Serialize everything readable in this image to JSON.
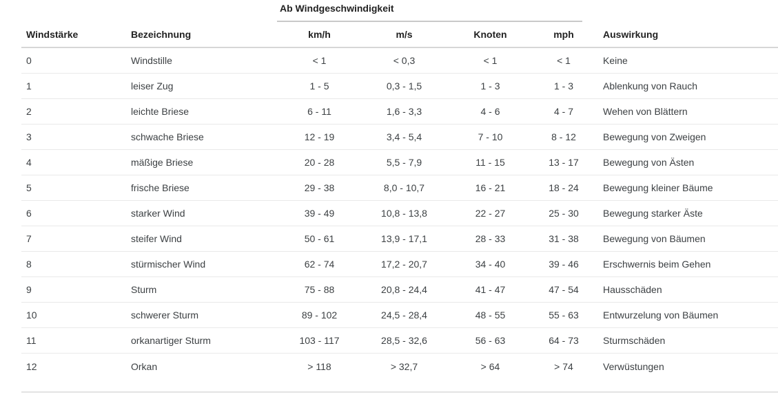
{
  "table": {
    "group_header": "Ab Windgeschwindigkeit",
    "columns": [
      "Windstärke",
      "Bezeichnung",
      "km/h",
      "m/s",
      "Knoten",
      "mph",
      "Auswirkung"
    ],
    "rows": [
      [
        "0",
        "Windstille",
        "< 1",
        "< 0,3",
        "< 1",
        "< 1",
        "Keine"
      ],
      [
        "1",
        "leiser Zug",
        "1 - 5",
        "0,3 - 1,5",
        "1 - 3",
        "1 - 3",
        "Ablenkung von Rauch"
      ],
      [
        "2",
        "leichte Briese",
        "6 - 11",
        "1,6 - 3,3",
        "4 - 6",
        "4 - 7",
        "Wehen von Blättern"
      ],
      [
        "3",
        "schwache Briese",
        "12 - 19",
        "3,4 - 5,4",
        "7 - 10",
        "8 - 12",
        "Bewegung von Zweigen"
      ],
      [
        "4",
        "mäßige Briese",
        "20 - 28",
        "5,5 - 7,9",
        "11 - 15",
        "13 - 17",
        "Bewegung von Ästen"
      ],
      [
        "5",
        "frische Briese",
        "29 - 38",
        "8,0 - 10,7",
        "16 - 21",
        "18 - 24",
        "Bewegung kleiner Bäume"
      ],
      [
        "6",
        "starker Wind",
        "39 - 49",
        "10,8 - 13,8",
        "22 - 27",
        "25 - 30",
        "Bewegung starker Äste"
      ],
      [
        "7",
        "steifer Wind",
        "50 - 61",
        "13,9 - 17,1",
        "28 - 33",
        "31 - 38",
        "Bewegung von Bäumen"
      ],
      [
        "8",
        "stürmischer Wind",
        "62 - 74",
        "17,2 - 20,7",
        "34 - 40",
        "39 - 46",
        "Erschwernis beim Gehen"
      ],
      [
        "9",
        "Sturm",
        "75 - 88",
        "20,8 - 24,4",
        "41 - 47",
        "47 - 54",
        "Hausschäden"
      ],
      [
        "10",
        "schwerer Sturm",
        "89 - 102",
        "24,5 - 28,4",
        "48 - 55",
        "55 - 63",
        "Entwurzelung von Bäumen"
      ],
      [
        "11",
        "orkanartiger Sturm",
        "103 - 117",
        "28,5 - 32,6",
        "56 - 63",
        "64 - 73",
        "Sturmschäden"
      ],
      [
        "12",
        "Orkan",
        "> 118",
        "> 32,7",
        "> 64",
        "> 74",
        "Verwüstungen"
      ]
    ]
  },
  "colors": {
    "text": "#3c4043",
    "header_text": "#222222",
    "row_border": "#e9e9e9",
    "header_border": "#d6d6d6",
    "group_underline": "#c9c9c9",
    "bottom_border": "#e3e3e3",
    "background": "#ffffff"
  }
}
